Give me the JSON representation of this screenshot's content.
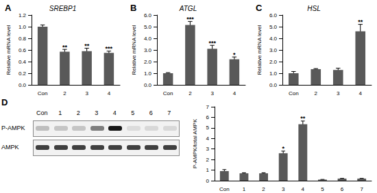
{
  "chart_data": [
    {
      "type": "bar",
      "panel": "A",
      "title": "SREBP1",
      "y_label": "Relative mRNA level",
      "categories": [
        "Con",
        "2",
        "3",
        "4"
      ],
      "values": [
        1.0,
        0.57,
        0.58,
        0.55
      ],
      "errors": [
        0.03,
        0.04,
        0.05,
        0.03
      ],
      "significance": [
        null,
        "**",
        "**",
        "***"
      ],
      "color": "#595959",
      "ylim": [
        0,
        1.2
      ],
      "yticks": [
        {
          "value": 0,
          "label": "0.0"
        },
        {
          "value": 0.2,
          "label": "0.2"
        },
        {
          "value": 0.4,
          "label": "0.4"
        },
        {
          "value": 0.6,
          "label": "0.6"
        },
        {
          "value": 0.8,
          "label": "0.8"
        },
        {
          "value": 1.0,
          "label": "1.0"
        },
        {
          "value": 1.2,
          "label": "1.2"
        }
      ]
    },
    {
      "type": "bar",
      "panel": "B",
      "title": "ATGL",
      "y_label": "Relative mRNA level",
      "categories": [
        "Con",
        "2",
        "3",
        "4"
      ],
      "values": [
        1.0,
        5.15,
        3.1,
        2.2
      ],
      "errors": [
        0.05,
        0.3,
        0.3,
        0.2
      ],
      "significance": [
        null,
        "***",
        "***",
        "*"
      ],
      "color": "#595959",
      "ylim": [
        0,
        6
      ],
      "yticks": [
        {
          "value": 0,
          "label": "0.0"
        },
        {
          "value": 1,
          "label": "1.0"
        },
        {
          "value": 2,
          "label": "2.0"
        },
        {
          "value": 3,
          "label": "3.0"
        },
        {
          "value": 4,
          "label": "4.0"
        },
        {
          "value": 5,
          "label": "5.0"
        },
        {
          "value": 6,
          "label": "6.0"
        }
      ]
    },
    {
      "type": "bar",
      "panel": "C",
      "title": "HSL",
      "y_label": "Relative mRNA level",
      "categories": [
        "Con",
        "2",
        "3",
        "4"
      ],
      "values": [
        1.0,
        1.35,
        1.28,
        4.6
      ],
      "errors": [
        0.15,
        0.05,
        0.15,
        0.6
      ],
      "significance": [
        null,
        null,
        null,
        "**"
      ],
      "color": "#595959",
      "ylim": [
        0,
        6
      ],
      "yticks": [
        {
          "value": 0,
          "label": "0.0"
        },
        {
          "value": 1,
          "label": "1.0"
        },
        {
          "value": 2,
          "label": "2.0"
        },
        {
          "value": 3,
          "label": "3.0"
        },
        {
          "value": 4,
          "label": "4.0"
        },
        {
          "value": 5,
          "label": "5.0"
        },
        {
          "value": 6,
          "label": "6.0"
        }
      ]
    },
    {
      "type": "bar",
      "panel": "D",
      "y_label": "P-AMPK/total AMPK",
      "categories": [
        "Con",
        "1",
        "2",
        "3",
        "4",
        "5",
        "6",
        "7"
      ],
      "values": [
        0.9,
        0.7,
        0.7,
        2.6,
        5.35,
        0.1,
        0.2,
        0.2
      ],
      "errors": [
        0.15,
        0.05,
        0.05,
        0.2,
        0.3,
        0.02,
        0.02,
        0.02
      ],
      "significance": [
        null,
        null,
        null,
        "*",
        "**",
        null,
        null,
        null
      ],
      "color": "#595959",
      "ylim": [
        0,
        7
      ],
      "yticks": [
        0,
        1,
        2,
        3,
        4,
        5,
        6,
        7
      ]
    }
  ],
  "blot": {
    "rows": [
      "P-AMPK",
      "AMPK"
    ],
    "lanes": [
      "Con",
      "1",
      "2",
      "3",
      "4",
      "5",
      "6",
      "7"
    ]
  }
}
